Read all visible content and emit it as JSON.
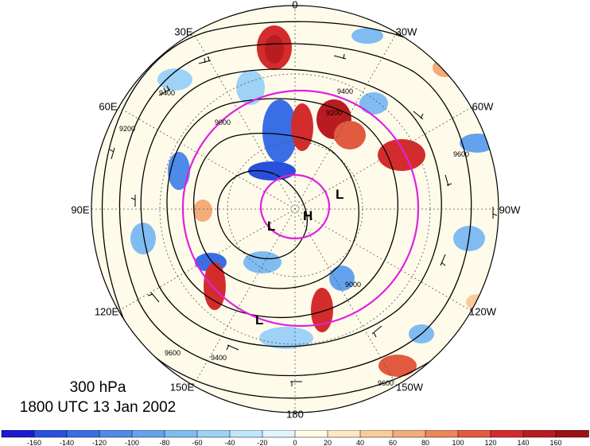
{
  "map": {
    "level": "300 hPa",
    "datetime": "1800 UTC 13 Jan 2002",
    "projection": "north-polar-stereographic",
    "longitude_labels": [
      {
        "text": "0",
        "lon": 0
      },
      {
        "text": "30W",
        "lon": -30
      },
      {
        "text": "60W",
        "lon": -60
      },
      {
        "text": "90W",
        "lon": -90
      },
      {
        "text": "120W",
        "lon": -120
      },
      {
        "text": "150W",
        "lon": -150
      },
      {
        "text": "180",
        "lon": 180
      },
      {
        "text": "150E",
        "lon": 150
      },
      {
        "text": "120E",
        "lon": 120
      },
      {
        "text": "90E",
        "lon": 90
      },
      {
        "text": "60E",
        "lon": 60
      },
      {
        "text": "30E",
        "lon": 30
      }
    ],
    "contour_labels": [
      "9000",
      "9200",
      "9400",
      "9600"
    ],
    "pressure_systems": [
      {
        "type": "H",
        "text": "H"
      },
      {
        "type": "L",
        "text": "L"
      },
      {
        "type": "L",
        "text": "L"
      },
      {
        "type": "L",
        "text": "L"
      }
    ],
    "ring_color": "#e020e0",
    "colorbar": {
      "ticks": [
        "-160",
        "-140",
        "-120",
        "-100",
        "-80",
        "-60",
        "-40",
        "-20",
        "0",
        "20",
        "40",
        "60",
        "80",
        "100",
        "120",
        "140",
        "160"
      ],
      "colors": [
        "#1a1ad0",
        "#2850dc",
        "#3a6ee6",
        "#4e8ae8",
        "#64a2ee",
        "#80bcf2",
        "#9ed2f6",
        "#c0e6fa",
        "#e2f4fd",
        "#fefde6",
        "#fce8c4",
        "#f8cc9c",
        "#f4ac78",
        "#ee8658",
        "#e25a40",
        "#d42c2c",
        "#b81c20",
        "#9a1218"
      ]
    }
  }
}
